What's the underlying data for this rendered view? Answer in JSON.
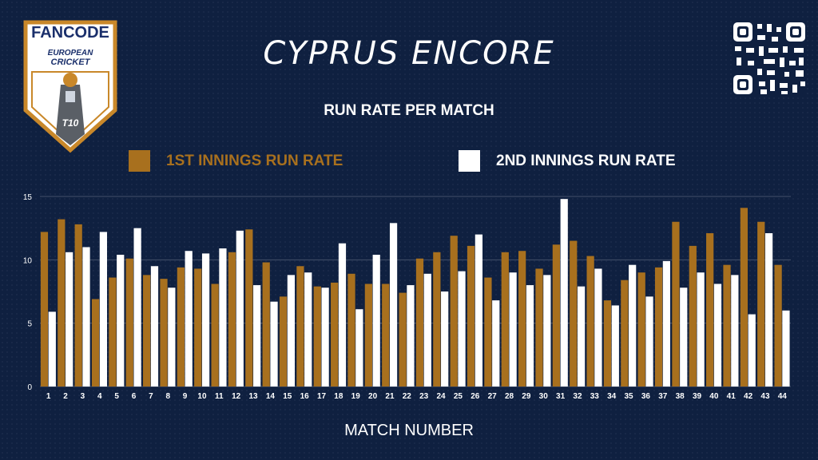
{
  "header": {
    "title": "CYPRUS ENCORE",
    "subtitle": "RUN RATE PER MATCH"
  },
  "logo": {
    "brand": "FANCODE",
    "line1": "EUROPEAN",
    "line2": "CRICKET",
    "badge": "T10"
  },
  "colors": {
    "background": "#0f2040",
    "series1": "#a8701e",
    "series2": "#ffffff",
    "logo_red": "#d62d2d",
    "logo_navy": "#1a2f6b",
    "logo_gold": "#c9882a"
  },
  "qr_icon": "qr-code-icon",
  "chart_data": {
    "type": "bar",
    "xlabel": "MATCH NUMBER",
    "ylabel": "",
    "ylim": [
      0,
      15
    ],
    "yticks": [
      0,
      5,
      10,
      15
    ],
    "grid": true,
    "legend_position": "top",
    "categories": [
      "1",
      "2",
      "3",
      "4",
      "5",
      "6",
      "7",
      "8",
      "9",
      "10",
      "11",
      "12",
      "13",
      "14",
      "15",
      "16",
      "17",
      "18",
      "19",
      "20",
      "21",
      "22",
      "23",
      "24",
      "25",
      "26",
      "27",
      "28",
      "29",
      "30",
      "31",
      "32",
      "33",
      "34",
      "35",
      "36",
      "37",
      "38",
      "39",
      "40",
      "41",
      "42",
      "43",
      "44"
    ],
    "series": [
      {
        "name": "1ST INNINGS RUN RATE",
        "values": [
          12.2,
          13.2,
          12.8,
          6.9,
          8.6,
          10.1,
          8.8,
          8.5,
          9.4,
          9.3,
          8.1,
          10.6,
          12.4,
          9.8,
          7.1,
          9.5,
          7.9,
          8.2,
          8.9,
          8.1,
          8.1,
          7.4,
          10.1,
          10.6,
          11.9,
          11.1,
          8.6,
          10.6,
          10.7,
          9.3,
          11.2,
          11.5,
          10.3,
          6.8,
          8.4,
          9.0,
          9.4,
          13.0,
          11.1,
          12.1,
          9.6,
          14.1,
          13.0,
          9.6
        ]
      },
      {
        "name": "2ND INNINGS RUN RATE",
        "values": [
          5.9,
          10.6,
          11.0,
          12.2,
          10.4,
          12.5,
          9.5,
          7.8,
          10.7,
          10.5,
          10.9,
          12.3,
          8.0,
          6.7,
          8.8,
          9.0,
          7.8,
          11.3,
          6.1,
          10.4,
          12.9,
          8.0,
          8.9,
          7.5,
          9.1,
          12.0,
          6.8,
          9.0,
          8.0,
          8.8,
          14.8,
          7.9,
          9.3,
          6.4,
          9.6,
          7.1,
          9.9,
          7.8,
          9.0,
          8.1,
          8.8,
          5.7,
          12.1,
          6.0
        ]
      }
    ]
  }
}
